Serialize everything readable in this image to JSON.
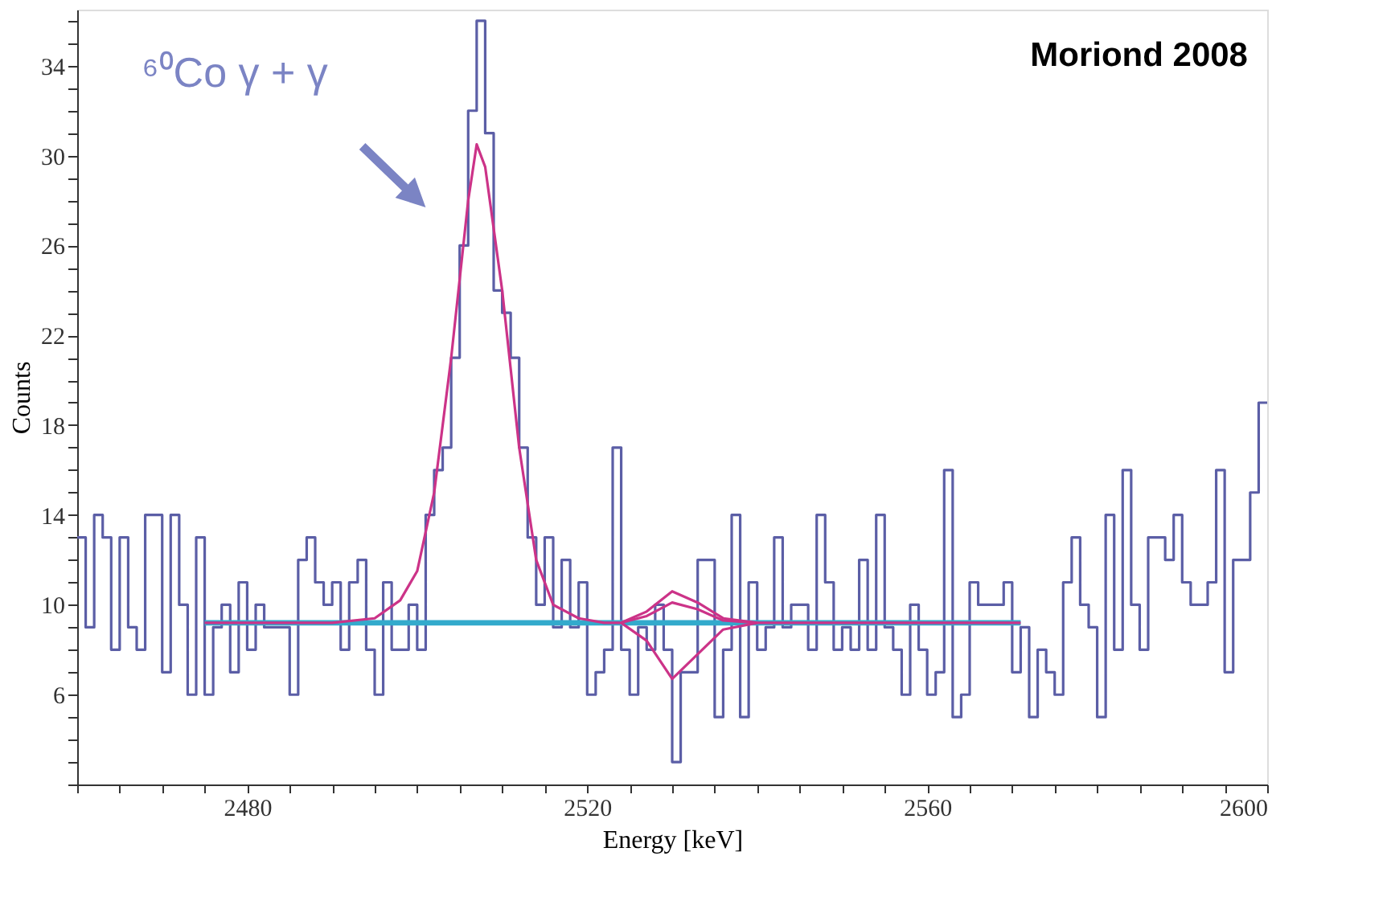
{
  "chart_data": {
    "type": "histogram",
    "xlabel": "Energy [keV]",
    "ylabel": "Counts",
    "bins": [
      2460,
      2461,
      2462,
      2463,
      2464,
      2465,
      2466,
      2467,
      2468,
      2469,
      2470,
      2471,
      2472,
      2473,
      2474,
      2475,
      2476,
      2477,
      2478,
      2479,
      2480,
      2481,
      2482,
      2483,
      2484,
      2485,
      2486,
      2487,
      2488,
      2489,
      2490,
      2491,
      2492,
      2493,
      2494,
      2495,
      2496,
      2497,
      2498,
      2499,
      2500,
      2501,
      2502,
      2503,
      2504,
      2505,
      2506,
      2507,
      2508,
      2509,
      2510,
      2511,
      2512,
      2513,
      2514,
      2515,
      2516,
      2517,
      2518,
      2519,
      2520,
      2521,
      2522,
      2523,
      2524,
      2525,
      2526,
      2527,
      2528,
      2529,
      2530,
      2531,
      2532,
      2533,
      2534,
      2535,
      2536,
      2537,
      2538,
      2539,
      2540,
      2541,
      2542,
      2543,
      2544,
      2545,
      2546,
      2547,
      2548,
      2549,
      2550,
      2551,
      2552,
      2553,
      2554,
      2555,
      2556,
      2557,
      2558,
      2559,
      2560,
      2561,
      2562,
      2563,
      2564,
      2565,
      2566,
      2567,
      2568,
      2569,
      2570,
      2571,
      2572,
      2573,
      2574,
      2575,
      2576,
      2577,
      2578,
      2579,
      2580,
      2581,
      2582,
      2583,
      2584,
      2585,
      2586,
      2587,
      2588,
      2589,
      2590,
      2591,
      2592,
      2593,
      2594,
      2595,
      2596,
      2597,
      2598,
      2599,
      2600
    ],
    "values": [
      13,
      9,
      14,
      13,
      8,
      13,
      9,
      8,
      14,
      14,
      7,
      14,
      10,
      6,
      13,
      6,
      9,
      10,
      7,
      11,
      8,
      10,
      9,
      9,
      9,
      6,
      12,
      13,
      11,
      10,
      11,
      8,
      11,
      12,
      8,
      6,
      11,
      8,
      8,
      10,
      8,
      14,
      16,
      17,
      21,
      26,
      32,
      36,
      31,
      24,
      23,
      21,
      17,
      13,
      10,
      13,
      9,
      12,
      9,
      11,
      6,
      7,
      8,
      17,
      8,
      6,
      9,
      8,
      10,
      8,
      3,
      7,
      7,
      12,
      12,
      5,
      8,
      14,
      5,
      11,
      8,
      9,
      13,
      9,
      10,
      10,
      8,
      14,
      11,
      8,
      9,
      8,
      12,
      8,
      14,
      9,
      8,
      6,
      10,
      8,
      6,
      7,
      16,
      5,
      6,
      11,
      10,
      10,
      10,
      11,
      7,
      9,
      5,
      8,
      7,
      6,
      11,
      13,
      10,
      9,
      5,
      14,
      8,
      16,
      10,
      8,
      13,
      13,
      12,
      14,
      11,
      10,
      10,
      11,
      16,
      7,
      12,
      12,
      15,
      19
    ],
    "color": "#5b5ea6",
    "series": [
      {
        "type": "line",
        "color": "#33aacc",
        "x": [
          2475,
          2571
        ],
        "values": [
          9.2,
          9.2
        ]
      },
      {
        "type": "line",
        "color": "#cc3388",
        "x": [
          2475,
          2490,
          2495,
          2498,
          2500,
          2502,
          2504,
          2506,
          2507,
          2508,
          2510,
          2512,
          2514,
          2516,
          2519,
          2522,
          2524,
          2527,
          2530,
          2533,
          2536,
          2540,
          2571
        ],
        "values": [
          9.2,
          9.2,
          9.4,
          10.2,
          11.5,
          15,
          21,
          28,
          30.5,
          29.5,
          24,
          17,
          12,
          10,
          9.4,
          9.2,
          9.2,
          9.7,
          10.6,
          10.1,
          9.4,
          9.2,
          9.2
        ]
      },
      {
        "type": "line",
        "color": "#cc3388",
        "x": [
          2524,
          2527,
          2530,
          2533,
          2536,
          2540
        ],
        "values": [
          9.2,
          9.5,
          10.1,
          9.8,
          9.3,
          9.2
        ]
      },
      {
        "type": "line",
        "color": "#cc3388",
        "x": [
          2524,
          2527,
          2530,
          2533,
          2536,
          2540
        ],
        "values": [
          9.2,
          8.4,
          6.7,
          7.8,
          8.9,
          9.2
        ]
      }
    ],
    "xlim": [
      2460,
      2600
    ],
    "xticks": [
      {
        "value": 2460,
        "label": null
      },
      {
        "value": 2465,
        "label": null
      },
      {
        "value": 2470,
        "label": null
      },
      {
        "value": 2475,
        "label": null
      },
      2480,
      {
        "value": 2485,
        "label": null
      },
      {
        "value": 2490,
        "label": null
      },
      {
        "value": 2495,
        "label": null
      },
      {
        "value": 2500,
        "label": null
      },
      {
        "value": 2505,
        "label": null
      },
      {
        "value": 2510,
        "label": null
      },
      {
        "value": 2515,
        "label": null
      },
      2520,
      {
        "value": 2525,
        "label": null
      },
      {
        "value": 2530,
        "label": null
      },
      {
        "value": 2535,
        "label": null
      },
      {
        "value": 2540,
        "label": null
      },
      {
        "value": 2545,
        "label": null
      },
      {
        "value": 2550,
        "label": null
      },
      {
        "value": 2555,
        "label": null
      },
      2560,
      {
        "value": 2565,
        "label": null
      },
      {
        "value": 2570,
        "label": null
      },
      {
        "value": 2575,
        "label": null
      },
      {
        "value": 2580,
        "label": null
      },
      {
        "value": 2585,
        "label": null
      },
      {
        "value": 2590,
        "label": null
      },
      {
        "value": 2595,
        "label": null
      },
      2600
    ],
    "ylim": [
      2,
      36.5
    ],
    "yticks": [
      {
        "value": 2,
        "label": null
      },
      {
        "value": 3,
        "label": null
      },
      {
        "value": 4,
        "label": null
      },
      {
        "value": 5,
        "label": null
      },
      6,
      {
        "value": 7,
        "label": null
      },
      {
        "value": 8,
        "label": null
      },
      {
        "value": 9,
        "label": null
      },
      10,
      {
        "value": 11,
        "label": null
      },
      {
        "value": 12,
        "label": null
      },
      {
        "value": 13,
        "label": null
      },
      14,
      {
        "value": 15,
        "label": null
      },
      {
        "value": 16,
        "label": null
      },
      {
        "value": 17,
        "label": null
      },
      18,
      {
        "value": 19,
        "label": null
      },
      {
        "value": 20,
        "label": null
      },
      {
        "value": 21,
        "label": null
      },
      22,
      {
        "value": 23,
        "label": null
      },
      {
        "value": 24,
        "label": null
      },
      {
        "value": 25,
        "label": null
      },
      26,
      {
        "value": 27,
        "label": null
      },
      {
        "value": 28,
        "label": null
      },
      {
        "value": 29,
        "label": null
      },
      30,
      {
        "value": 31,
        "label": null
      },
      {
        "value": 32,
        "label": null
      },
      {
        "value": 33,
        "label": null
      },
      34,
      {
        "value": 35,
        "label": null
      },
      {
        "value": 36,
        "label": null
      }
    ],
    "annotations": [
      "Moriond 2008",
      "⁶⁰Co γ + γ"
    ],
    "grid": false
  }
}
